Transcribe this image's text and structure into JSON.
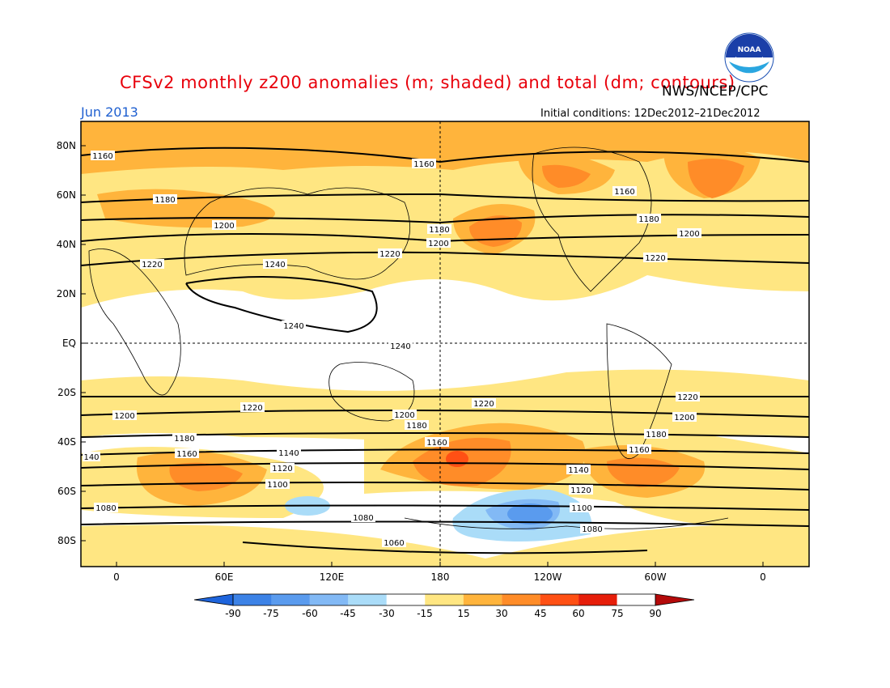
{
  "header": {
    "title": "CFSv2 monthly z200 anomalies (m; shaded) and total (dm; contours)",
    "agency": "NWS/NCEP/CPC",
    "month": "Jun 2013",
    "initial_conditions": "Initial conditions: 12Dec2012–21Dec2012"
  },
  "logo": {
    "text": "NOAA",
    "icon": "noaa-logo"
  },
  "map": {
    "lat_labels": [
      "80N",
      "60N",
      "40N",
      "20N",
      "EQ",
      "20S",
      "40S",
      "60S",
      "80S"
    ],
    "lon_labels": [
      "0",
      "60E",
      "120E",
      "180",
      "120W",
      "60W",
      "0"
    ],
    "contour_labels": {
      "c1060": "1060",
      "c1080": "1080",
      "c1100": "1100",
      "c1120": "1120",
      "c1140": "1140",
      "c140": "140",
      "c1160": "1160",
      "c1180": "1180",
      "c1200": "1200",
      "c1220": "1220",
      "c1240": "1240"
    }
  },
  "colorbar": {
    "labels": [
      "-90",
      "-75",
      "-60",
      "-45",
      "-30",
      "-15",
      "15",
      "30",
      "45",
      "60",
      "75",
      "90"
    ],
    "colors": [
      "#1e64dc",
      "#3c82e6",
      "#5a9bee",
      "#82b9f5",
      "#aadcf8",
      "#ffffff",
      "#ffe682",
      "#ffb43c",
      "#ff8c28",
      "#ff5014",
      "#e61e0a",
      "#b40a0a"
    ]
  }
}
